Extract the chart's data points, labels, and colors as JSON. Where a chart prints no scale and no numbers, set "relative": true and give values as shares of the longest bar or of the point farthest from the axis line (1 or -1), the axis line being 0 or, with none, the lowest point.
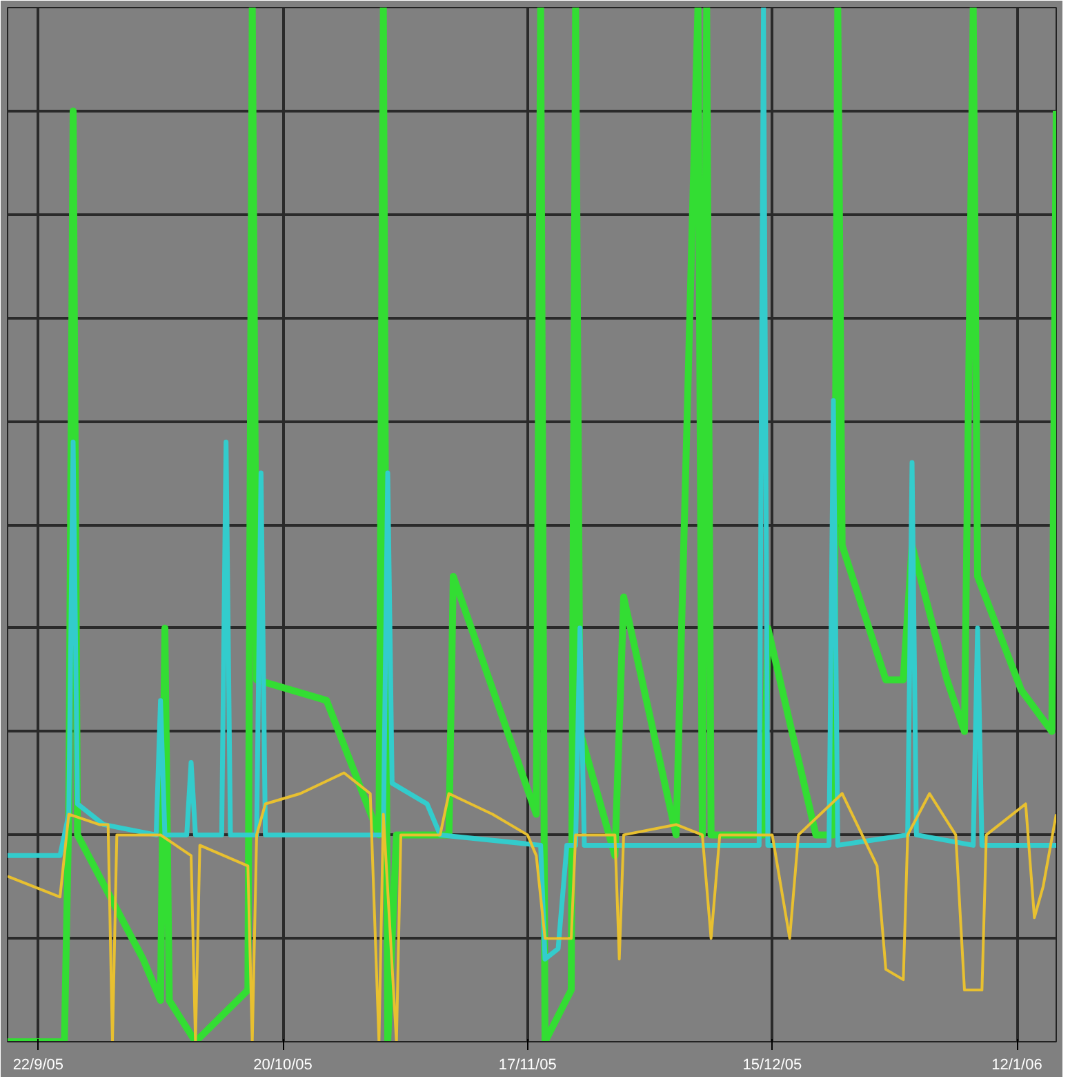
{
  "chart_data": {
    "type": "line",
    "relative": true,
    "grid": true,
    "xlim": [
      "2005-09-18T12:00",
      "2006-01-16T12:00"
    ],
    "xticks": [
      {
        "value": "2005-09-22",
        "label": "22/9/05"
      },
      {
        "value": "2005-10-20",
        "label": "20/10/05"
      },
      {
        "value": "2005-11-17",
        "label": "17/11/05"
      },
      {
        "value": "2005-12-15",
        "label": "15/12/05"
      },
      {
        "value": "2006-01-12",
        "label": "12/1/06"
      }
    ],
    "series": [
      {
        "color": "#33dd33",
        "x": [
          "2005-09-18T12:00",
          "2005-09-25",
          "2005-09-25T12:00",
          "2005-09-26",
          "2005-09-26T12:00",
          "2005-10-04",
          "2005-10-06",
          "2005-10-06T12:00",
          "2005-10-07",
          "2005-10-10",
          "2005-10-16",
          "2005-10-16T12:00",
          "2005-10-17",
          "2005-10-25",
          "2005-10-31",
          "2005-10-31T12:00",
          "2005-11-01",
          "2005-11-02",
          "2005-11-08",
          "2005-11-08T12:00",
          "2005-11-18",
          "2005-11-18T12:00",
          "2005-11-19",
          "2005-11-22",
          "2005-11-22T12:00",
          "2005-11-23",
          "2005-11-27",
          "2005-11-28",
          "2005-12-04",
          "2005-12-06T12:00",
          "2005-12-07",
          "2005-12-07T12:00",
          "2005-12-08",
          "2005-12-14",
          "2005-12-14T12:00",
          "2005-12-20",
          "2005-12-22",
          "2005-12-22T12:00",
          "2005-12-23",
          "2005-12-28",
          "2005-12-30",
          "2005-12-31",
          "2006-01-04",
          "2006-01-06",
          "2006-01-07",
          "2006-01-07T12:00",
          "2006-01-12T12:00",
          "2006-01-16",
          "2006-01-16T12:00"
        ],
        "values": [
          0.0,
          0.0,
          0.22,
          0.9,
          0.2,
          0.08,
          0.04,
          0.4,
          0.04,
          0.0,
          0.05,
          1.0,
          0.35,
          0.33,
          0.2,
          1.0,
          0.0,
          0.2,
          0.2,
          0.45,
          0.22,
          1.0,
          0.0,
          0.05,
          1.0,
          0.3,
          0.18,
          0.43,
          0.2,
          1.0,
          0.2,
          1.0,
          0.2,
          0.2,
          0.4,
          0.2,
          0.2,
          1.0,
          0.48,
          0.35,
          0.35,
          0.48,
          0.35,
          0.3,
          1.0,
          0.45,
          0.34,
          0.3,
          0.9
        ]
      },
      {
        "color": "#33cccc",
        "x": [
          "2005-09-18T12:00",
          "2005-09-24T12:00",
          "2005-09-25T12:00",
          "2005-09-26",
          "2005-09-26T12:00",
          "2005-09-29T12:00",
          "2005-10-05T12:00",
          "2005-10-06",
          "2005-10-06T12:00",
          "2005-10-09",
          "2005-10-09T12:00",
          "2005-10-10",
          "2005-10-13",
          "2005-10-13T12:00",
          "2005-10-14",
          "2005-10-17",
          "2005-10-17T12:00",
          "2005-10-18",
          "2005-10-22",
          "2005-10-31T12:00",
          "2005-11-01",
          "2005-11-01T12:00",
          "2005-11-05T12:00",
          "2005-11-07",
          "2005-11-18T12:00",
          "2005-11-19",
          "2005-11-20T12:00",
          "2005-11-21T12:00",
          "2005-11-22T12:00",
          "2005-11-23",
          "2005-11-23T12:00",
          "2005-12-13T12:00",
          "2005-12-14",
          "2005-12-14T12:00",
          "2005-12-21T12:00",
          "2005-12-22",
          "2005-12-22T12:00",
          "2005-12-30T12:00",
          "2005-12-31",
          "2005-12-31T12:00",
          "2006-01-07",
          "2006-01-07T12:00",
          "2006-01-08",
          "2006-01-16T12:00"
        ],
        "values": [
          0.18,
          0.18,
          0.22,
          0.58,
          0.23,
          0.21,
          0.2,
          0.33,
          0.2,
          0.2,
          0.27,
          0.2,
          0.2,
          0.58,
          0.2,
          0.2,
          0.55,
          0.2,
          0.2,
          0.2,
          0.55,
          0.25,
          0.23,
          0.2,
          0.19,
          0.08,
          0.09,
          0.19,
          0.19,
          0.4,
          0.19,
          0.19,
          1.0,
          0.19,
          0.19,
          0.62,
          0.19,
          0.2,
          0.56,
          0.2,
          0.19,
          0.4,
          0.19,
          0.19
        ]
      },
      {
        "color": "#e8c030",
        "x": [
          "2005-09-18T12:00",
          "2005-09-24T12:00",
          "2005-09-25T12:00",
          "2005-09-29",
          "2005-09-30",
          "2005-09-30T12:00",
          "2005-10-01",
          "2005-10-06",
          "2005-10-09T12:00",
          "2005-10-10",
          "2005-10-10T12:00",
          "2005-10-16",
          "2005-10-16T12:00",
          "2005-10-17",
          "2005-10-18",
          "2005-10-22",
          "2005-10-27",
          "2005-10-30",
          "2005-10-31",
          "2005-10-31T12:00",
          "2005-11-02",
          "2005-11-02T12:00",
          "2005-11-07",
          "2005-11-08",
          "2005-11-13",
          "2005-11-17",
          "2005-11-18",
          "2005-11-19",
          "2005-11-22",
          "2005-11-22T12:00",
          "2005-11-27",
          "2005-11-27T12:00",
          "2005-11-28",
          "2005-12-04",
          "2005-12-07",
          "2005-12-08",
          "2005-12-09",
          "2005-12-15",
          "2005-12-17",
          "2005-12-18",
          "2005-12-23",
          "2005-12-27",
          "2005-12-28",
          "2005-12-30",
          "2005-12-30T12:00",
          "2006-01-02",
          "2006-01-05",
          "2006-01-06",
          "2006-01-08",
          "2006-01-08T12:00",
          "2006-01-13",
          "2006-01-14",
          "2006-01-15",
          "2006-01-16T12:00"
        ],
        "values": [
          0.16,
          0.14,
          0.22,
          0.21,
          0.21,
          0.0,
          0.2,
          0.2,
          0.18,
          0.0,
          0.19,
          0.17,
          0.0,
          0.2,
          0.23,
          0.24,
          0.26,
          0.24,
          0.0,
          0.22,
          0.0,
          0.2,
          0.2,
          0.24,
          0.22,
          0.2,
          0.18,
          0.1,
          0.1,
          0.2,
          0.2,
          0.08,
          0.2,
          0.21,
          0.2,
          0.1,
          0.2,
          0.2,
          0.1,
          0.2,
          0.24,
          0.17,
          0.07,
          0.06,
          0.2,
          0.24,
          0.2,
          0.05,
          0.05,
          0.2,
          0.23,
          0.12,
          0.15,
          0.22
        ]
      }
    ]
  }
}
